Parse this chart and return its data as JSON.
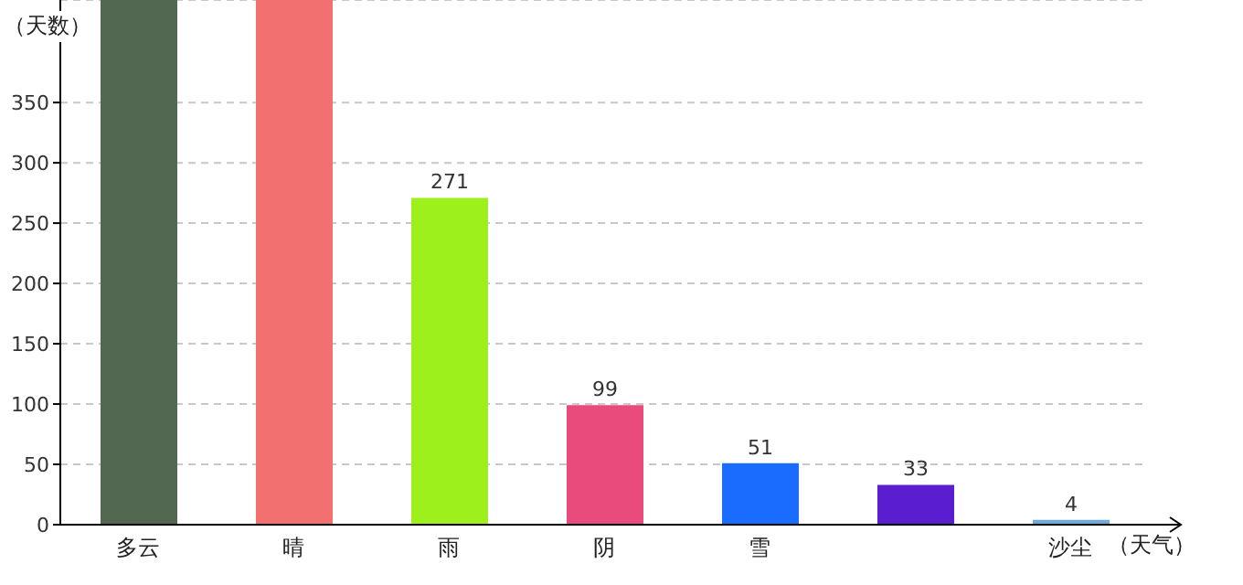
{
  "chart_data": {
    "type": "bar",
    "xlabel": "（天气）",
    "ylabel": "（天数）",
    "categories": [
      "多云",
      "晴",
      "雨",
      "阴",
      "雪",
      null,
      "沙尘"
    ],
    "values": [
      435,
      435,
      271,
      99,
      51,
      33,
      4
    ],
    "value_labels": [
      null,
      null,
      "271",
      "99",
      "51",
      "33",
      "4"
    ],
    "colors": [
      "#536850",
      "#f37070",
      "#9ef01c",
      "#e84b7c",
      "#1a6cff",
      "#5a1ed0",
      "#6fa8dc"
    ],
    "ylim": [
      0,
      435
    ],
    "yticks": [
      0,
      50,
      100,
      150,
      200,
      250,
      300,
      350
    ],
    "grid": "y"
  }
}
